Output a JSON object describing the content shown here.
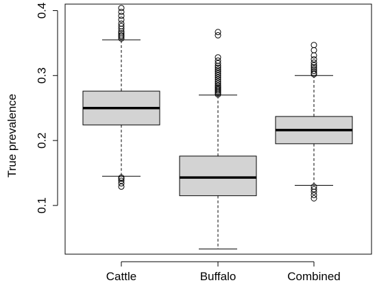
{
  "chart_data": {
    "type": "boxplot",
    "xlabel": "",
    "ylabel": "True prevalence",
    "ylim": [
      0.025,
      0.41
    ],
    "yticks": [
      0.1,
      0.2,
      0.3,
      0.4
    ],
    "ytick_labels": [
      "0.1",
      "0.2",
      "0.3",
      "0.4"
    ],
    "categories": [
      "Cattle",
      "Buffalo",
      "Combined"
    ],
    "box_fill": "#d3d3d3",
    "boxes": [
      {
        "name": "Cattle",
        "lower_whisker": 0.145,
        "q1": 0.224,
        "median": 0.25,
        "q3": 0.276,
        "upper_whisker": 0.355,
        "outliers": [
          0.129,
          0.134,
          0.138,
          0.141,
          0.143,
          0.357,
          0.36,
          0.362,
          0.365,
          0.368,
          0.372,
          0.376,
          0.38,
          0.386,
          0.392,
          0.398,
          0.404
        ]
      },
      {
        "name": "Buffalo",
        "lower_whisker": 0.033,
        "q1": 0.115,
        "median": 0.143,
        "q3": 0.176,
        "upper_whisker": 0.27,
        "outliers": [
          0.271,
          0.273,
          0.275,
          0.277,
          0.279,
          0.281,
          0.283,
          0.285,
          0.288,
          0.291,
          0.294,
          0.297,
          0.3,
          0.303,
          0.306,
          0.309,
          0.312,
          0.315,
          0.319,
          0.323,
          0.328,
          0.362,
          0.367
        ]
      },
      {
        "name": "Combined",
        "lower_whisker": 0.131,
        "q1": 0.195,
        "median": 0.216,
        "q3": 0.237,
        "upper_whisker": 0.3,
        "outliers": [
          0.111,
          0.116,
          0.121,
          0.125,
          0.129,
          0.302,
          0.304,
          0.307,
          0.31,
          0.313,
          0.316,
          0.32,
          0.325,
          0.331,
          0.339,
          0.347
        ]
      }
    ]
  }
}
